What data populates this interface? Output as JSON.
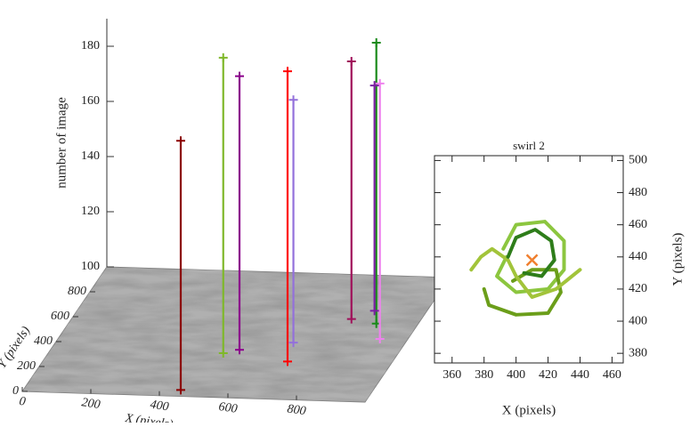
{
  "chart_data": [
    {
      "type": "3d-tracks",
      "xlabel": "X (pixels)",
      "ylabel": "Y (pixels)",
      "zlabel": "number of image",
      "xlim": [
        0,
        1000
      ],
      "ylim": [
        0,
        1000
      ],
      "zlim": [
        100,
        190
      ],
      "xticks": [
        0,
        200,
        400,
        600,
        800
      ],
      "yticks": [
        0,
        200,
        400,
        600,
        800
      ],
      "zticks": [
        100,
        120,
        140,
        160,
        180
      ],
      "series": [
        {
          "color": "#8b0000",
          "x": [
            450,
            450
          ],
          "y": [
            50,
            50
          ],
          "z": [
            100,
            150
          ]
        },
        {
          "color": "#7fb82a",
          "x": [
            500,
            500
          ],
          "y": [
            350,
            350
          ],
          "z": [
            100,
            169
          ]
        },
        {
          "color": "#8b008b",
          "x": [
            540,
            540
          ],
          "y": [
            380,
            380
          ],
          "z": [
            100,
            165
          ]
        },
        {
          "color": "#9370db",
          "x": [
            680,
            680
          ],
          "y": [
            450,
            450
          ],
          "z": [
            100,
            160
          ]
        },
        {
          "color": "#ff0000",
          "x": [
            700,
            700
          ],
          "y": [
            300,
            300
          ],
          "z": [
            100,
            166
          ]
        },
        {
          "color": "#a0105a",
          "x": [
            800,
            800
          ],
          "y": [
            650,
            650
          ],
          "z": [
            100,
            172
          ]
        },
        {
          "color": "#1a8a1a",
          "x": [
            880,
            880
          ],
          "y": [
            620,
            620
          ],
          "z": [
            100,
            177
          ]
        },
        {
          "color": "#ee82ee",
          "x": [
            920,
            920
          ],
          "y": [
            500,
            500
          ],
          "z": [
            100,
            165
          ]
        },
        {
          "color": "#7a1fa2",
          "x": [
            850,
            850
          ],
          "y": [
            720,
            720
          ],
          "z": [
            100,
            166
          ]
        }
      ]
    },
    {
      "type": "line",
      "title": "swirl 2",
      "xlabel": "X (pixels)",
      "ylabel": "Y (pixels)",
      "xlim": [
        349,
        467
      ],
      "ylim": [
        374,
        503
      ],
      "xticks": [
        360,
        380,
        400,
        420,
        440,
        460
      ],
      "yticks": [
        380,
        400,
        420,
        440,
        460,
        480,
        500
      ],
      "series": [
        {
          "color": "#8cc63f",
          "x": [
            392,
            400,
            418,
            430,
            430,
            420,
            400,
            388,
            394
          ],
          "y": [
            445,
            460,
            462,
            450,
            432,
            420,
            418,
            428,
            440
          ]
        },
        {
          "color": "#6b9e1a",
          "x": [
            380,
            383,
            400,
            420,
            428,
            425,
            410,
            398
          ],
          "y": [
            420,
            410,
            404,
            405,
            418,
            432,
            432,
            425
          ]
        },
        {
          "color": "#a2c43a",
          "x": [
            372,
            378,
            385,
            395,
            400,
            410,
            425,
            440
          ],
          "y": [
            432,
            440,
            445,
            438,
            428,
            415,
            420,
            432
          ]
        },
        {
          "color": "#2e7d1a",
          "x": [
            395,
            400,
            412,
            422,
            424,
            416,
            405
          ],
          "y": [
            440,
            452,
            457,
            450,
            438,
            428,
            430
          ]
        }
      ],
      "marker": {
        "color": "#f08030",
        "x": [
          410
        ],
        "y": [
          438
        ]
      }
    }
  ]
}
